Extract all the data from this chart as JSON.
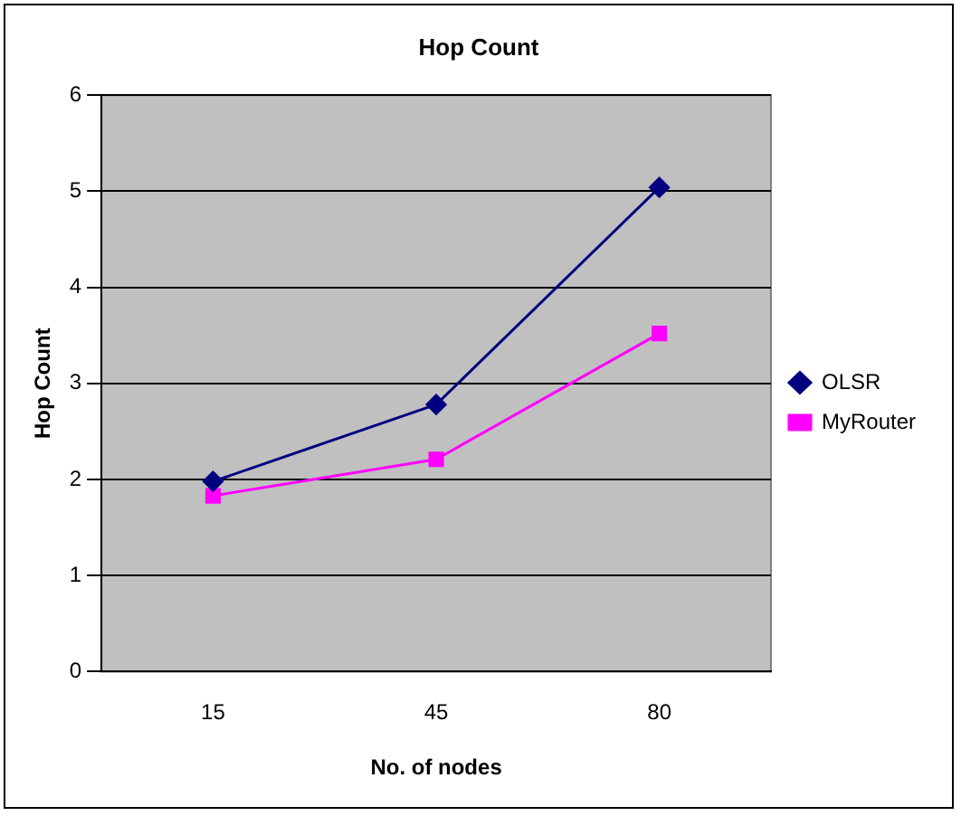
{
  "chart_data": {
    "type": "line",
    "title": "Hop Count",
    "xlabel": "No. of nodes",
    "ylabel": "Hop Count",
    "categories": [
      "15",
      "45",
      "80"
    ],
    "series": [
      {
        "name": "OLSR",
        "color": "#000080",
        "marker": "diamond",
        "values": [
          1.98,
          2.78,
          5.04
        ]
      },
      {
        "name": "MyRouter",
        "color": "#ff00ff",
        "marker": "square",
        "values": [
          1.83,
          2.21,
          3.52
        ]
      }
    ],
    "ylim": [
      0,
      6
    ],
    "yticks": [
      0,
      1,
      2,
      3,
      4,
      5,
      6
    ],
    "grid": "y",
    "legend": "right"
  }
}
